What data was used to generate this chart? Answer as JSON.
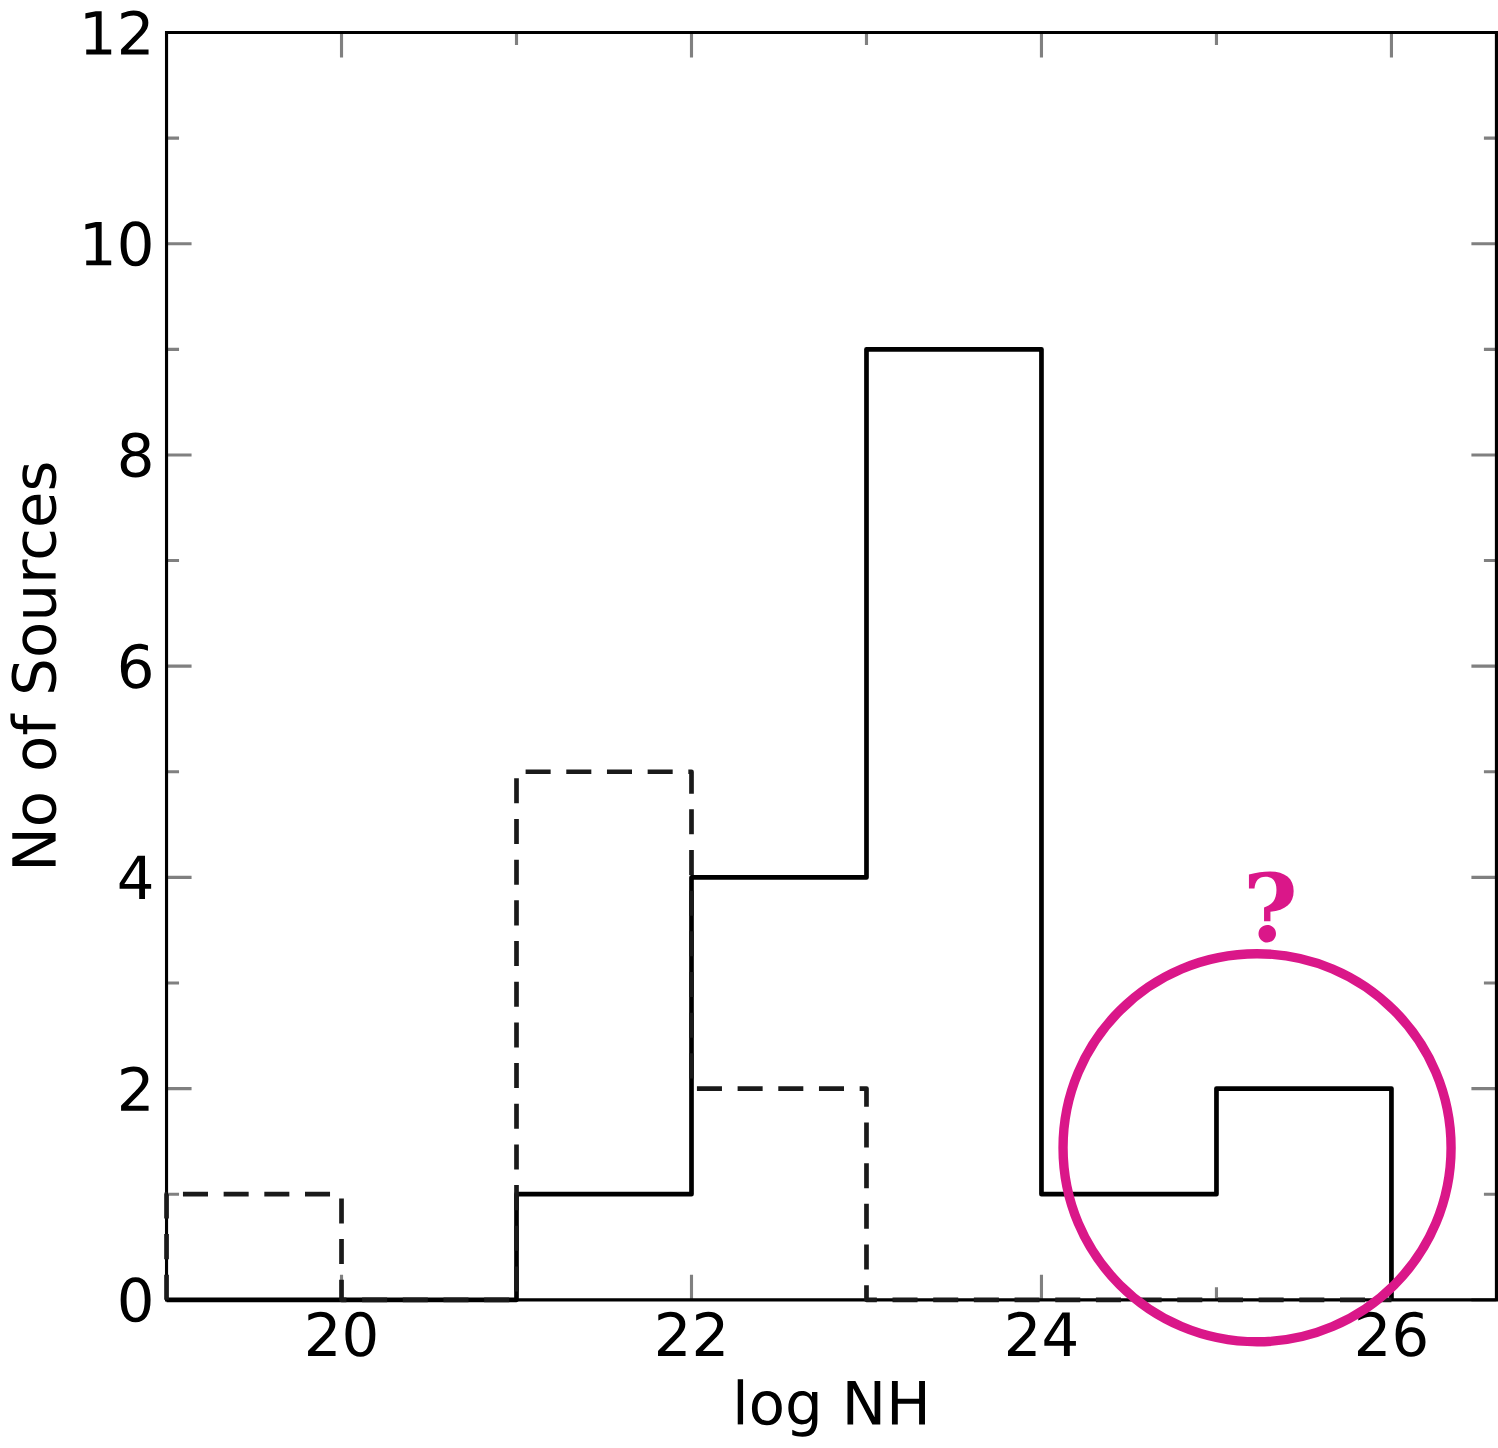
{
  "chart_data": {
    "type": "histogram",
    "xlabel": "log NH",
    "ylabel": "No of Sources",
    "series": [
      {
        "color": "#000000",
        "line_style": "solid",
        "values": [
          0,
          0,
          1,
          4,
          9,
          1,
          2
        ]
      },
      {
        "color": "#1a1a1a",
        "line_style": "dashed",
        "values": [
          1,
          0,
          5,
          2,
          0,
          0,
          0
        ]
      }
    ],
    "bins": [
      19,
      20,
      21,
      22,
      23,
      24,
      25,
      26
    ],
    "xlim": [
      19,
      26.6
    ],
    "ylim": [
      0,
      12
    ],
    "xticks": [
      {
        "value": 20,
        "label": "20"
      },
      {
        "value": 22,
        "label": "22"
      },
      {
        "value": 24,
        "label": "24"
      },
      {
        "value": 26,
        "label": "26"
      }
    ],
    "yticks": [
      {
        "value": 0,
        "label": "0"
      },
      {
        "value": 2,
        "label": "2"
      },
      {
        "value": 4,
        "label": "4"
      },
      {
        "value": 6,
        "label": "6"
      },
      {
        "value": 8,
        "label": "8"
      },
      {
        "value": 10,
        "label": "10"
      },
      {
        "value": 12,
        "label": "12"
      }
    ],
    "annotations": [
      "?"
    ],
    "grid": false
  }
}
